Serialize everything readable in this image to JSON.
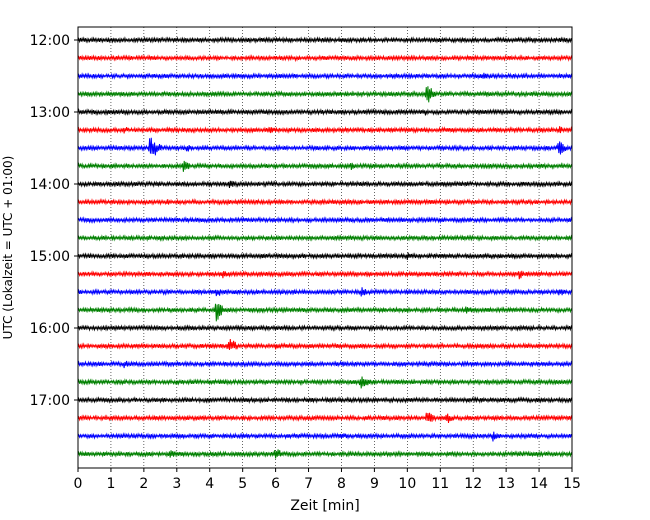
{
  "chart_data": {
    "type": "line",
    "title": "",
    "xlabel": "Zeit  [min]",
    "ylabel": "UTC (Lokalzeit = UTC + 01:00)",
    "xlim": [
      0,
      15
    ],
    "x_ticks": [
      "0",
      "1",
      "2",
      "3",
      "4",
      "5",
      "6",
      "7",
      "8",
      "9",
      "10",
      "11",
      "12",
      "13",
      "14",
      "15"
    ],
    "y_ticks": [
      "12:00",
      "13:00",
      "14:00",
      "15:00",
      "16:00",
      "17:00"
    ],
    "grid": "vertical dotted at each minute",
    "trace_interval_min": 15,
    "trace_colors_cycle": [
      "#000000",
      "#ff0000",
      "#0000ff",
      "#008000"
    ],
    "start_time": "12:00",
    "traces": [
      {
        "start": "12:00",
        "color": "#000000",
        "events": [
          {
            "t": 14.0,
            "amp": 0.35
          }
        ]
      },
      {
        "start": "12:15",
        "color": "#ff0000",
        "events": [
          {
            "t": 6.6,
            "amp": 0.3
          }
        ]
      },
      {
        "start": "12:30",
        "color": "#0000ff",
        "events": [
          {
            "t": 12.3,
            "amp": 0.6
          }
        ]
      },
      {
        "start": "12:45",
        "color": "#008000",
        "events": [
          {
            "t": 10.6,
            "amp": 1.3
          }
        ]
      },
      {
        "start": "13:00",
        "color": "#000000",
        "events": [
          {
            "t": 10.5,
            "amp": 0.5
          }
        ]
      },
      {
        "start": "13:15",
        "color": "#ff0000",
        "events": [
          {
            "t": 1.4,
            "amp": 0.5
          },
          {
            "t": 5.8,
            "amp": 0.6
          },
          {
            "t": 14.6,
            "amp": 0.5
          }
        ]
      },
      {
        "start": "13:30",
        "color": "#0000ff",
        "events": [
          {
            "t": 2.2,
            "amp": 1.8
          },
          {
            "t": 3.3,
            "amp": 0.5
          },
          {
            "t": 14.6,
            "amp": 1.0
          }
        ]
      },
      {
        "start": "13:45",
        "color": "#008000",
        "events": [
          {
            "t": 3.2,
            "amp": 0.8
          },
          {
            "t": 8.3,
            "amp": 0.5
          }
        ]
      },
      {
        "start": "14:00",
        "color": "#000000",
        "events": [
          {
            "t": 4.6,
            "amp": 0.6
          }
        ]
      },
      {
        "start": "14:15",
        "color": "#ff0000",
        "events": [
          {
            "t": 2.7,
            "amp": 0.4
          }
        ]
      },
      {
        "start": "14:30",
        "color": "#0000ff",
        "events": [
          {
            "t": 5.5,
            "amp": 0.2
          }
        ]
      },
      {
        "start": "14:45",
        "color": "#008000",
        "events": [
          {
            "t": 3.0,
            "amp": 0.2
          }
        ]
      },
      {
        "start": "15:00",
        "color": "#000000",
        "events": [
          {
            "t": 10.0,
            "amp": 0.5
          }
        ]
      },
      {
        "start": "15:15",
        "color": "#ff0000",
        "events": [
          {
            "t": 4.4,
            "amp": 0.5
          },
          {
            "t": 13.4,
            "amp": 0.6
          }
        ]
      },
      {
        "start": "15:30",
        "color": "#0000ff",
        "events": [
          {
            "t": 4.2,
            "amp": 0.7
          },
          {
            "t": 8.6,
            "amp": 0.6
          },
          {
            "t": 14.6,
            "amp": 0.6
          }
        ]
      },
      {
        "start": "15:45",
        "color": "#008000",
        "events": [
          {
            "t": 4.2,
            "amp": 1.5
          },
          {
            "t": 11.8,
            "amp": 0.6
          }
        ]
      },
      {
        "start": "16:00",
        "color": "#000000",
        "events": [
          {
            "t": 13.8,
            "amp": 0.2
          }
        ]
      },
      {
        "start": "16:15",
        "color": "#ff0000",
        "events": [
          {
            "t": 4.6,
            "amp": 1.2
          },
          {
            "t": 6.0,
            "amp": 0.4
          }
        ]
      },
      {
        "start": "16:30",
        "color": "#0000ff",
        "events": [
          {
            "t": 1.4,
            "amp": 0.5
          },
          {
            "t": 8.0,
            "amp": 0.4
          }
        ]
      },
      {
        "start": "16:45",
        "color": "#008000",
        "events": [
          {
            "t": 8.6,
            "amp": 1.0
          },
          {
            "t": 3.0,
            "amp": 0.3
          }
        ]
      },
      {
        "start": "17:00",
        "color": "#000000",
        "events": [
          {
            "t": 11.5,
            "amp": 0.3
          }
        ]
      },
      {
        "start": "17:15",
        "color": "#ff0000",
        "events": [
          {
            "t": 10.6,
            "amp": 0.9
          },
          {
            "t": 11.2,
            "amp": 0.7
          },
          {
            "t": 7.4,
            "amp": 0.3
          }
        ]
      },
      {
        "start": "17:30",
        "color": "#0000ff",
        "events": [
          {
            "t": 8.0,
            "amp": 0.5
          },
          {
            "t": 12.6,
            "amp": 0.7
          }
        ]
      },
      {
        "start": "17:45",
        "color": "#008000",
        "events": [
          {
            "t": 2.8,
            "amp": 0.5
          },
          {
            "t": 6.0,
            "amp": 0.8
          },
          {
            "t": 13.4,
            "amp": 0.4
          }
        ]
      }
    ]
  }
}
